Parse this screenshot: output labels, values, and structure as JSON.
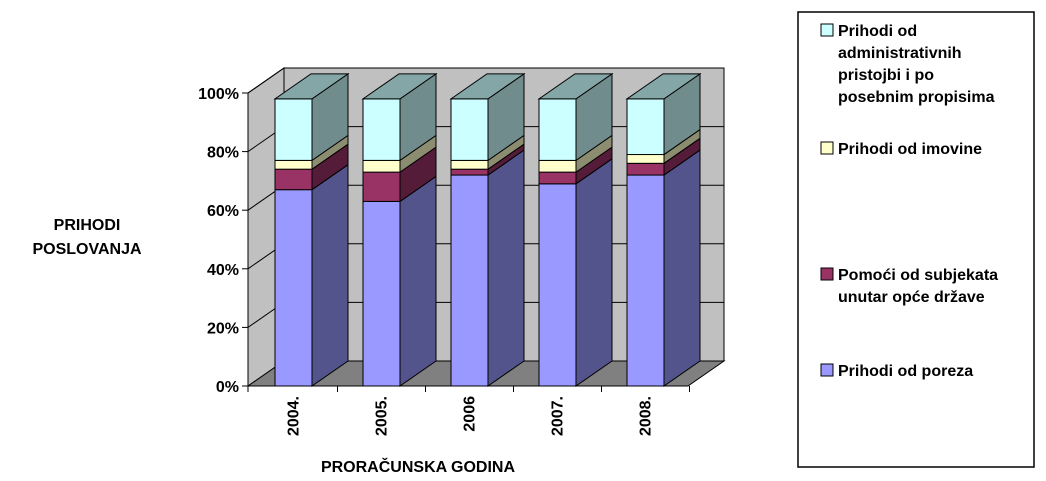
{
  "chart_data": {
    "type": "bar",
    "stacked": true,
    "percent": true,
    "three_d": true,
    "categories": [
      "2004.",
      "2005.",
      "2006",
      "2007.",
      "2008."
    ],
    "series": [
      {
        "name": "Prihodi od poreza",
        "color": "#9999ff",
        "values": [
          67,
          63,
          72,
          69,
          72
        ]
      },
      {
        "name": "Pomoći od subjekata unutar opće države",
        "color": "#993366",
        "values": [
          7,
          10,
          2,
          4,
          4
        ]
      },
      {
        "name": "Prihodi od imovine",
        "color": "#ffffcc",
        "values": [
          3,
          4,
          3,
          4,
          3
        ]
      },
      {
        "name": "Prihodi od administrativnih pristojbi i po posebnim propisima",
        "color": "#ccffff",
        "values": [
          21,
          21,
          21,
          21,
          19
        ]
      }
    ],
    "yticks": [
      "0%",
      "20%",
      "40%",
      "60%",
      "80%",
      "100%"
    ],
    "ylim": [
      0,
      100
    ],
    "ylabel_lines": [
      "PRIHODI",
      "POSLOVANJA"
    ],
    "xlabel": "PRORAČUNSKA GODINA",
    "grid": true,
    "legend_position": "right",
    "legend": [
      {
        "series": 3,
        "lines": [
          "Prihodi od",
          "administrativnih",
          "pristojbi i po",
          "posebnim propisima"
        ]
      },
      {
        "series": 2,
        "lines": [
          "Prihodi od imovine"
        ]
      },
      {
        "series": 1,
        "lines": [
          "Pomoći od subjekata",
          "unutar opće države"
        ]
      },
      {
        "series": 0,
        "lines": [
          "Prihodi od poreza"
        ]
      }
    ],
    "colors": {
      "wall": "#c0c0c0",
      "floor": "#808080",
      "side_shade": 0.55,
      "top_tint": 0.25
    }
  }
}
